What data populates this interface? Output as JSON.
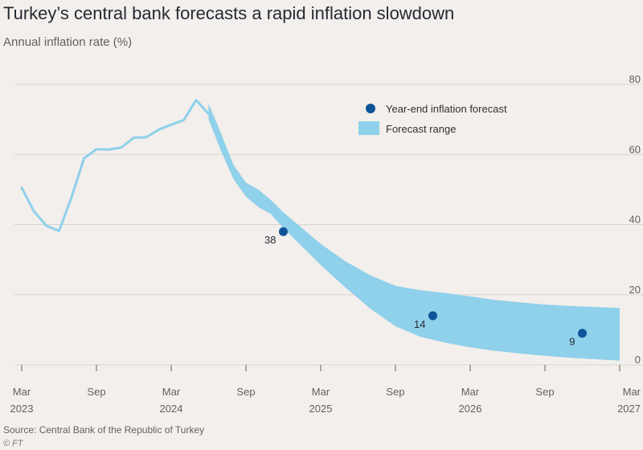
{
  "header": {
    "title": "Turkey’s central bank forecasts a rapid inflation slowdown",
    "subtitle": "Annual inflation rate (%)"
  },
  "footer": {
    "source": "Source: Central Bank of the Republic of Turkey",
    "credit": "© FT"
  },
  "colors": {
    "background": "#f2efec",
    "actual_line": "#8fd0ea",
    "band": "#8fd0ea",
    "point": "#0f5499",
    "grid": "#d9d4cf"
  },
  "chart_data": {
    "type": "line",
    "title": "Turkey’s central bank forecasts a rapid inflation slowdown",
    "ylabel": "Annual inflation rate (%)",
    "xlim": [
      "2023-03",
      "2027-03"
    ],
    "ylim": [
      0,
      80
    ],
    "y_ticks": [
      0,
      20,
      40,
      60,
      80
    ],
    "x_ticks": [
      {
        "x": "2023-03",
        "label": "Mar",
        "year": "2023"
      },
      {
        "x": "2023-09",
        "label": "Sep",
        "year": ""
      },
      {
        "x": "2024-03",
        "label": "Mar",
        "year": "2024"
      },
      {
        "x": "2024-09",
        "label": "Sep",
        "year": ""
      },
      {
        "x": "2025-03",
        "label": "Mar",
        "year": "2025"
      },
      {
        "x": "2025-09",
        "label": "Sep",
        "year": ""
      },
      {
        "x": "2026-03",
        "label": "Mar",
        "year": "2026"
      },
      {
        "x": "2026-09",
        "label": "Sep",
        "year": ""
      },
      {
        "x": "2027-03",
        "label": "Mar",
        "year": "2027"
      }
    ],
    "grid": true,
    "y_axis_side": "right",
    "legend_position": "top-right",
    "series": [
      {
        "name": "",
        "kind": "line",
        "x": [
          "2023-03",
          "2023-04",
          "2023-05",
          "2023-06",
          "2023-07",
          "2023-08",
          "2023-09",
          "2023-10",
          "2023-11",
          "2023-12",
          "2024-01",
          "2024-02",
          "2024-03",
          "2024-04",
          "2024-05",
          "2024-06"
        ],
        "values": [
          50.5,
          43.7,
          39.6,
          38.2,
          47.8,
          58.9,
          61.5,
          61.4,
          62.0,
          64.8,
          64.9,
          67.1,
          68.5,
          69.8,
          75.5,
          71.6
        ]
      },
      {
        "name": "Forecast range",
        "kind": "band",
        "x": [
          "2024-06",
          "2024-07",
          "2024-08",
          "2024-09",
          "2024-10",
          "2024-11",
          "2024-12",
          "2025-01",
          "2025-02",
          "2025-03",
          "2025-05",
          "2025-07",
          "2025-09",
          "2025-11",
          "2026-01",
          "2026-03",
          "2026-05",
          "2026-07",
          "2026-09",
          "2026-11",
          "2027-01",
          "2027-03"
        ],
        "upper": [
          74.5,
          66.0,
          57.0,
          52.0,
          50.0,
          47.0,
          43.5,
          40.5,
          37.5,
          34.5,
          29.5,
          25.5,
          22.5,
          21.3,
          20.5,
          19.5,
          18.5,
          17.8,
          17.2,
          16.8,
          16.5,
          16.2
        ],
        "lower": [
          70.0,
          61.0,
          53.0,
          48.0,
          45.0,
          43.0,
          39.0,
          35.5,
          32.0,
          28.5,
          22.0,
          16.0,
          11.0,
          8.0,
          6.3,
          5.0,
          4.0,
          3.2,
          2.6,
          2.0,
          1.6,
          1.2
        ]
      },
      {
        "name": "Year-end inflation forecast",
        "kind": "points",
        "points": [
          {
            "x": "2024-12",
            "value": 38,
            "label": "38"
          },
          {
            "x": "2025-12",
            "value": 14,
            "label": "14"
          },
          {
            "x": "2026-12",
            "value": 9,
            "label": "9"
          }
        ]
      }
    ]
  }
}
